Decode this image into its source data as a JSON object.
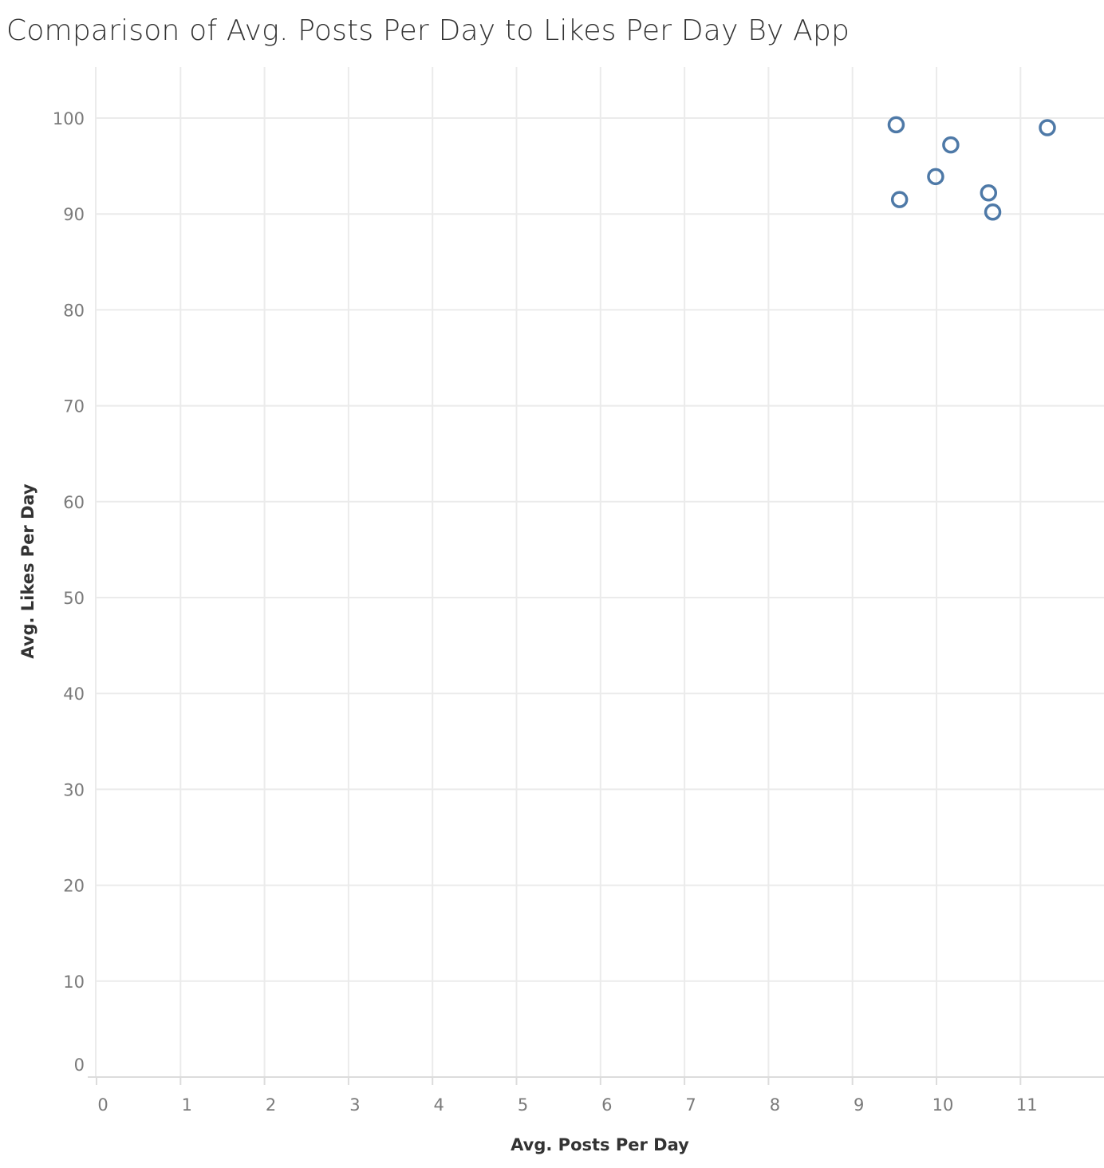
{
  "chart_data": {
    "type": "scatter",
    "title": "Comparison of Avg. Posts Per Day to Likes Per Day  By App",
    "xlabel": "Avg. Posts Per Day",
    "ylabel": "Avg. Likes Per Day",
    "xlim": [
      0,
      12
    ],
    "ylim": [
      0,
      105
    ],
    "x_ticks": [
      0,
      1,
      2,
      3,
      4,
      5,
      6,
      7,
      8,
      9,
      10,
      11
    ],
    "y_ticks": [
      0,
      10,
      20,
      30,
      40,
      50,
      60,
      70,
      80,
      90,
      100
    ],
    "grid": true,
    "marker": "hollow-circle",
    "marker_color": "#4e79a7",
    "points": [
      {
        "x": 9.52,
        "y": 99.3
      },
      {
        "x": 9.56,
        "y": 91.5
      },
      {
        "x": 9.99,
        "y": 93.9
      },
      {
        "x": 10.17,
        "y": 97.2
      },
      {
        "x": 10.62,
        "y": 92.2
      },
      {
        "x": 10.67,
        "y": 90.2
      },
      {
        "x": 11.32,
        "y": 99.0
      }
    ]
  }
}
